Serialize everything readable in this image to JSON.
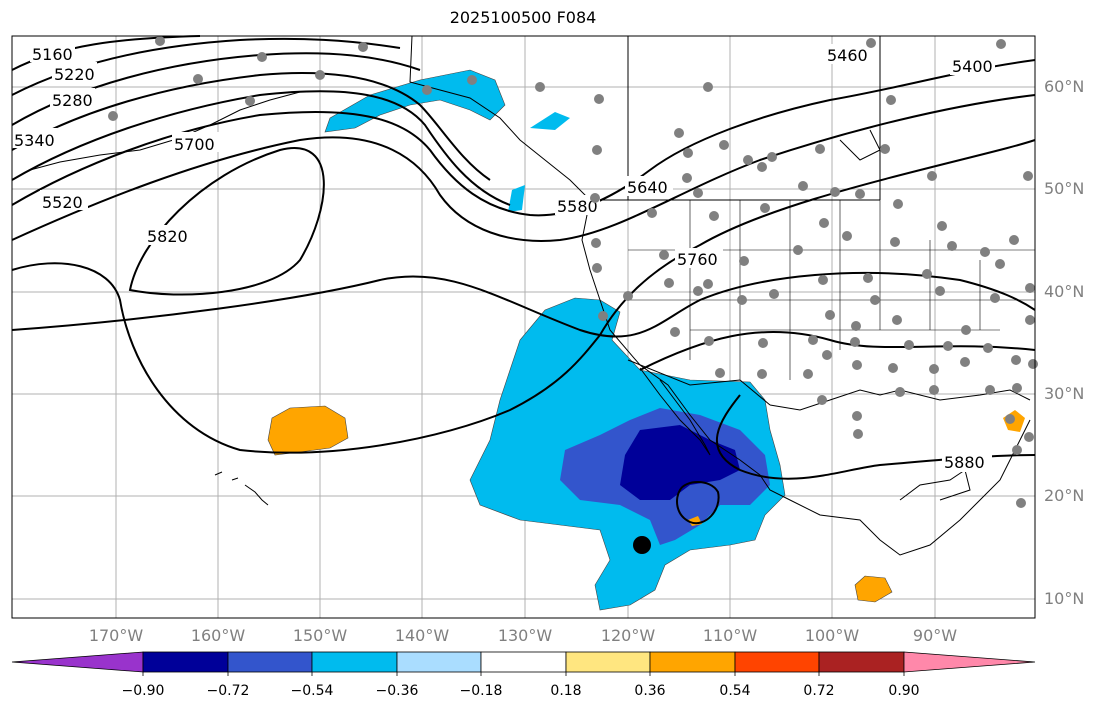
{
  "title": "2025100500 F084",
  "lat_labels": [
    "60°N",
    "50°N",
    "40°N",
    "30°N",
    "20°N",
    "10°N"
  ],
  "lon_labels": [
    "170°W",
    "160°W",
    "150°W",
    "140°W",
    "130°W",
    "120°W",
    "110°W",
    "100°W",
    "90°W"
  ],
  "contour_labels": [
    "5160",
    "5220",
    "5280",
    "5340",
    "5400",
    "5460",
    "5520",
    "5580",
    "5640",
    "5700",
    "5760",
    "5820",
    "5880"
  ],
  "colorbar": {
    "ticks": [
      "−0.90",
      "−0.72",
      "−0.54",
      "−0.36",
      "−0.18",
      "0.18",
      "0.36",
      "0.54",
      "0.72",
      "0.90"
    ],
    "colors": [
      "#9933cc",
      "#000099",
      "#3355cc",
      "#00bbee",
      "#aaddff",
      "#ffffff",
      "#ffe680",
      "#ffa500",
      "#ff4400",
      "#aa2222",
      "#ff88aa"
    ]
  },
  "colors": {
    "land_outline": "#000000",
    "grid": "#b0b0b0",
    "station": "#808080",
    "storm_center": "#000000"
  }
}
